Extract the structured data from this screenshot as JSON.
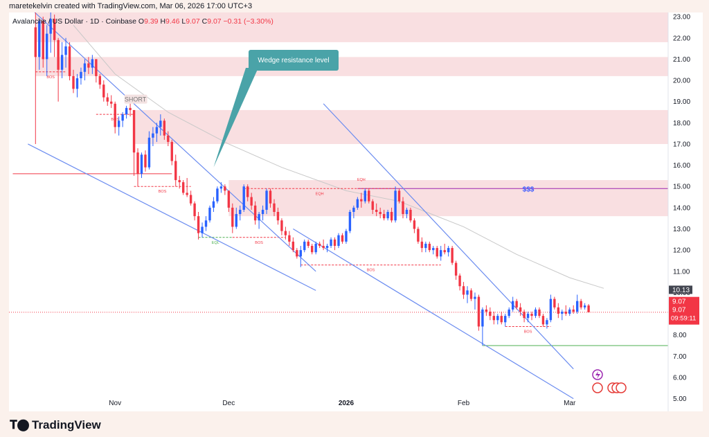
{
  "header": {
    "author_line": "maretekelvin created with TradingView.com, Mar 06, 2026 17:00 UTC+3"
  },
  "legend": {
    "symbol": "Avalanche / US Dollar · 1D · Coinbase",
    "open_label": "O",
    "open": "9.39",
    "high_label": "H",
    "high": "9.46",
    "low_label": "L",
    "low": "9.07",
    "close_label": "C",
    "close": "9.07",
    "change": "−0.31 (−3.30%)"
  },
  "footer": {
    "brand": "TradingView"
  },
  "colors": {
    "up": "#2962ff",
    "down": "#f23645",
    "zone": "#f7d7d9",
    "trendline": "#6b8cf0",
    "callout": "#4aa3a8",
    "ma": "#c8c8c8",
    "liquidity": "#9c27b0",
    "support": "#4caf50"
  },
  "chart_data": {
    "type": "candlestick",
    "interval": "1D",
    "y_axis": {
      "ticks": [
        "23.00",
        "22.00",
        "21.00",
        "20.00",
        "19.00",
        "18.00",
        "17.00",
        "16.00",
        "15.00",
        "14.00",
        "13.00",
        "12.00",
        "11.00",
        "10.00",
        "9.00",
        "8.00",
        "7.00",
        "6.00",
        "5.00"
      ],
      "range": [
        4.4,
        23.2
      ],
      "position": "right"
    },
    "x_axis": {
      "ticks": [
        "Nov",
        "Dec",
        "2026",
        "Feb",
        "Mar"
      ],
      "range": [
        "2025-10-04",
        "2026-03-27"
      ]
    },
    "last_price": "9.07",
    "countdown": "09:59:11",
    "ma_value": "10.13",
    "candles": [
      [
        "2025-10-11",
        22.5,
        23.4,
        17.0,
        21.1
      ],
      [
        "2025-10-12",
        21.1,
        22.9,
        20.5,
        22.8
      ],
      [
        "2025-10-13",
        22.8,
        23.0,
        20.6,
        21.0
      ],
      [
        "2025-10-14",
        21.0,
        22.6,
        20.2,
        22.2
      ],
      [
        "2025-10-15",
        22.2,
        23.4,
        21.3,
        22.9
      ],
      [
        "2025-10-16",
        22.9,
        23.1,
        21.1,
        21.9
      ],
      [
        "2025-10-17",
        21.9,
        22.0,
        19.0,
        20.5
      ],
      [
        "2025-10-18",
        20.5,
        21.8,
        20.1,
        21.2
      ],
      [
        "2025-10-19",
        21.2,
        22.0,
        20.6,
        21.6
      ],
      [
        "2025-10-20",
        21.6,
        21.8,
        20.0,
        20.2
      ],
      [
        "2025-10-21",
        20.2,
        20.5,
        19.4,
        19.6
      ],
      [
        "2025-10-22",
        19.6,
        20.3,
        19.2,
        20.1
      ],
      [
        "2025-10-23",
        20.1,
        20.6,
        19.8,
        20.4
      ],
      [
        "2025-10-24",
        20.4,
        21.0,
        20.0,
        20.8
      ],
      [
        "2025-10-25",
        20.8,
        21.1,
        20.3,
        20.6
      ],
      [
        "2025-10-26",
        20.6,
        21.2,
        20.3,
        21.0
      ],
      [
        "2025-10-27",
        21.0,
        21.0,
        19.9,
        20.2
      ],
      [
        "2025-10-28",
        20.2,
        20.3,
        19.6,
        19.8
      ],
      [
        "2025-10-29",
        19.8,
        20.0,
        19.0,
        19.2
      ],
      [
        "2025-10-30",
        19.2,
        19.4,
        18.8,
        19.0
      ],
      [
        "2025-10-31",
        19.0,
        19.3,
        18.7,
        18.9
      ],
      [
        "2025-11-01",
        18.9,
        19.0,
        17.5,
        17.8
      ],
      [
        "2025-11-02",
        17.8,
        18.3,
        17.4,
        18.1
      ],
      [
        "2025-11-03",
        18.1,
        18.5,
        17.8,
        18.4
      ],
      [
        "2025-11-04",
        18.4,
        18.8,
        18.2,
        18.7
      ],
      [
        "2025-11-05",
        18.7,
        18.9,
        18.3,
        18.6
      ],
      [
        "2025-11-06",
        18.6,
        18.6,
        15.5,
        16.6
      ],
      [
        "2025-11-07",
        16.6,
        16.8,
        15.0,
        15.6
      ],
      [
        "2025-11-08",
        15.6,
        16.6,
        15.4,
        16.5
      ],
      [
        "2025-11-09",
        16.5,
        16.7,
        15.7,
        15.9
      ],
      [
        "2025-11-10",
        15.9,
        17.6,
        15.8,
        17.3
      ],
      [
        "2025-11-11",
        17.3,
        17.8,
        16.9,
        17.5
      ],
      [
        "2025-11-12",
        17.5,
        18.0,
        17.1,
        17.8
      ],
      [
        "2025-11-13",
        17.8,
        18.4,
        17.4,
        18.1
      ],
      [
        "2025-11-14",
        18.1,
        18.2,
        17.2,
        17.4
      ],
      [
        "2025-11-15",
        17.4,
        17.6,
        16.9,
        17.1
      ],
      [
        "2025-11-16",
        17.1,
        17.2,
        16.0,
        16.2
      ],
      [
        "2025-11-17",
        16.2,
        16.5,
        15.0,
        15.3
      ],
      [
        "2025-11-18",
        15.3,
        15.5,
        14.9,
        15.2
      ],
      [
        "2025-11-19",
        15.2,
        15.3,
        14.6,
        14.7
      ],
      [
        "2025-11-20",
        14.7,
        15.4,
        14.5,
        14.6
      ],
      [
        "2025-11-21",
        14.6,
        14.8,
        14.1,
        14.2
      ],
      [
        "2025-11-22",
        14.2,
        14.3,
        13.4,
        13.6
      ],
      [
        "2025-11-23",
        13.6,
        13.8,
        12.5,
        12.8
      ],
      [
        "2025-11-24",
        12.8,
        13.3,
        12.6,
        13.1
      ],
      [
        "2025-11-25",
        13.1,
        13.6,
        12.9,
        13.4
      ],
      [
        "2025-11-26",
        13.4,
        14.1,
        13.3,
        14.0
      ],
      [
        "2025-11-27",
        14.0,
        14.5,
        13.8,
        14.3
      ],
      [
        "2025-11-28",
        14.3,
        15.0,
        14.2,
        14.9
      ],
      [
        "2025-11-29",
        14.9,
        15.2,
        14.7,
        15.0
      ],
      [
        "2025-11-30",
        15.0,
        15.1,
        14.6,
        14.8
      ],
      [
        "2025-12-01",
        14.8,
        14.8,
        13.8,
        14.0
      ],
      [
        "2025-12-02",
        14.0,
        14.2,
        12.8,
        13.1
      ],
      [
        "2025-12-03",
        13.1,
        14.0,
        13.0,
        13.7
      ],
      [
        "2025-12-04",
        13.7,
        14.1,
        13.4,
        13.9
      ],
      [
        "2025-12-05",
        13.9,
        15.1,
        13.8,
        15.0
      ],
      [
        "2025-12-06",
        15.0,
        15.1,
        14.3,
        14.5
      ],
      [
        "2025-12-07",
        14.5,
        14.7,
        13.9,
        14.1
      ],
      [
        "2025-12-08",
        14.1,
        14.3,
        13.2,
        13.4
      ],
      [
        "2025-12-09",
        13.4,
        13.8,
        13.0,
        13.7
      ],
      [
        "2025-12-10",
        13.7,
        14.1,
        13.4,
        13.9
      ],
      [
        "2025-12-11",
        13.9,
        14.9,
        13.7,
        14.8
      ],
      [
        "2025-12-12",
        14.8,
        14.9,
        14.0,
        14.2
      ],
      [
        "2025-12-13",
        14.2,
        14.4,
        13.6,
        13.8
      ],
      [
        "2025-12-14",
        13.8,
        14.0,
        13.2,
        13.4
      ],
      [
        "2025-12-15",
        13.4,
        13.5,
        12.7,
        12.9
      ],
      [
        "2025-12-16",
        12.9,
        13.1,
        12.5,
        12.7
      ],
      [
        "2025-12-17",
        12.7,
        12.9,
        12.2,
        12.4
      ],
      [
        "2025-12-18",
        12.4,
        12.6,
        11.9,
        12.0
      ],
      [
        "2025-12-19",
        12.0,
        12.1,
        11.6,
        11.7
      ],
      [
        "2025-12-20",
        11.7,
        12.2,
        11.2,
        12.0
      ],
      [
        "2025-12-21",
        12.0,
        12.5,
        11.9,
        12.4
      ],
      [
        "2025-12-22",
        12.4,
        12.5,
        12.1,
        12.2
      ],
      [
        "2025-12-23",
        12.2,
        12.3,
        11.8,
        11.9
      ],
      [
        "2025-12-24",
        11.9,
        12.4,
        11.8,
        12.3
      ],
      [
        "2025-12-25",
        12.3,
        12.4,
        12.1,
        12.2
      ],
      [
        "2025-12-26",
        12.2,
        12.5,
        12.0,
        12.1
      ],
      [
        "2025-12-27",
        12.1,
        12.3,
        11.9,
        12.2
      ],
      [
        "2025-12-28",
        12.2,
        12.6,
        12.1,
        12.5
      ],
      [
        "2025-12-29",
        12.5,
        12.6,
        12.0,
        12.2
      ],
      [
        "2025-12-30",
        12.2,
        12.8,
        12.1,
        12.7
      ],
      [
        "2025-12-31",
        12.7,
        12.8,
        12.3,
        12.4
      ],
      [
        "2026-01-01",
        12.4,
        13.0,
        12.3,
        12.9
      ],
      [
        "2026-01-02",
        12.9,
        13.9,
        12.8,
        13.8
      ],
      [
        "2026-01-03",
        13.8,
        14.1,
        13.5,
        14.0
      ],
      [
        "2026-01-04",
        14.0,
        14.5,
        13.9,
        14.4
      ],
      [
        "2026-01-05",
        14.4,
        14.7,
        14.0,
        14.3
      ],
      [
        "2026-01-06",
        14.3,
        14.9,
        14.2,
        14.8
      ],
      [
        "2026-01-07",
        14.8,
        14.9,
        14.2,
        14.3
      ],
      [
        "2026-01-08",
        14.3,
        14.4,
        13.7,
        13.9
      ],
      [
        "2026-01-09",
        13.9,
        14.2,
        13.6,
        13.8
      ],
      [
        "2026-01-10",
        13.8,
        14.0,
        13.5,
        13.7
      ],
      [
        "2026-01-11",
        13.7,
        13.9,
        13.4,
        13.5
      ],
      [
        "2026-01-12",
        13.5,
        13.9,
        13.4,
        13.8
      ],
      [
        "2026-01-13",
        13.8,
        14.0,
        13.3,
        13.4
      ],
      [
        "2026-01-14",
        13.4,
        15.0,
        13.3,
        14.8
      ],
      [
        "2026-01-15",
        14.8,
        14.9,
        14.2,
        14.3
      ],
      [
        "2026-01-16",
        14.3,
        14.5,
        13.5,
        13.7
      ],
      [
        "2026-01-17",
        13.7,
        14.0,
        13.5,
        13.9
      ],
      [
        "2026-01-18",
        13.9,
        14.0,
        13.3,
        13.4
      ],
      [
        "2026-01-19",
        13.4,
        13.5,
        12.8,
        13.0
      ],
      [
        "2026-01-20",
        13.0,
        13.1,
        12.3,
        12.4
      ],
      [
        "2026-01-21",
        12.4,
        12.6,
        11.9,
        12.1
      ],
      [
        "2026-01-22",
        12.1,
        12.4,
        11.9,
        12.3
      ],
      [
        "2026-01-23",
        12.3,
        12.4,
        11.9,
        12.0
      ],
      [
        "2026-01-24",
        12.0,
        12.2,
        11.8,
        12.1
      ],
      [
        "2026-01-25",
        12.1,
        12.2,
        11.6,
        11.7
      ],
      [
        "2026-01-26",
        11.7,
        12.2,
        11.5,
        12.0
      ],
      [
        "2026-01-27",
        12.0,
        12.3,
        11.8,
        11.9
      ],
      [
        "2026-01-28",
        11.9,
        12.2,
        11.7,
        12.1
      ],
      [
        "2026-01-29",
        12.1,
        12.2,
        11.3,
        11.4
      ],
      [
        "2026-01-30",
        11.4,
        11.5,
        10.6,
        10.8
      ],
      [
        "2026-01-31",
        10.8,
        10.9,
        10.1,
        10.3
      ],
      [
        "2026-02-01",
        10.3,
        10.5,
        9.7,
        9.9
      ],
      [
        "2026-02-02",
        9.9,
        10.3,
        9.5,
        10.1
      ],
      [
        "2026-02-03",
        10.1,
        10.2,
        9.6,
        9.7
      ],
      [
        "2026-02-04",
        9.7,
        10.0,
        9.2,
        9.8
      ],
      [
        "2026-02-05",
        9.8,
        9.9,
        8.2,
        8.4
      ],
      [
        "2026-02-06",
        8.4,
        9.3,
        7.5,
        9.2
      ],
      [
        "2026-02-07",
        9.2,
        9.4,
        8.9,
        9.1
      ],
      [
        "2026-02-08",
        9.1,
        9.3,
        8.7,
        8.9
      ],
      [
        "2026-02-09",
        8.9,
        9.1,
        8.5,
        8.7
      ],
      [
        "2026-02-10",
        8.7,
        9.0,
        8.5,
        8.9
      ],
      [
        "2026-02-11",
        8.9,
        9.1,
        8.5,
        8.6
      ],
      [
        "2026-02-12",
        8.6,
        9.0,
        8.4,
        8.9
      ],
      [
        "2026-02-13",
        8.9,
        9.3,
        8.8,
        9.2
      ],
      [
        "2026-02-14",
        9.2,
        9.8,
        9.1,
        9.6
      ],
      [
        "2026-02-15",
        9.6,
        9.7,
        9.2,
        9.3
      ],
      [
        "2026-02-16",
        9.3,
        9.5,
        8.9,
        9.1
      ],
      [
        "2026-02-17",
        9.1,
        9.2,
        8.6,
        8.8
      ],
      [
        "2026-02-18",
        8.8,
        9.1,
        8.6,
        9.0
      ],
      [
        "2026-02-19",
        9.0,
        9.1,
        8.7,
        8.9
      ],
      [
        "2026-02-20",
        8.9,
        9.3,
        8.8,
        9.2
      ],
      [
        "2026-02-21",
        9.2,
        9.3,
        8.8,
        8.9
      ],
      [
        "2026-02-22",
        8.9,
        9.0,
        8.4,
        8.5
      ],
      [
        "2026-02-23",
        8.5,
        8.8,
        8.3,
        8.7
      ],
      [
        "2026-02-24",
        8.7,
        9.9,
        8.6,
        9.7
      ],
      [
        "2026-02-25",
        9.7,
        9.8,
        9.2,
        9.3
      ],
      [
        "2026-02-26",
        9.3,
        9.5,
        8.8,
        9.0
      ],
      [
        "2026-02-27",
        9.0,
        9.2,
        8.7,
        9.1
      ],
      [
        "2026-02-28",
        9.1,
        9.4,
        8.9,
        9.0
      ],
      [
        "2026-03-01",
        9.0,
        9.3,
        8.9,
        9.2
      ],
      [
        "2026-03-02",
        9.2,
        9.4,
        9.0,
        9.1
      ],
      [
        "2026-03-03",
        9.1,
        9.9,
        9.0,
        9.6
      ],
      [
        "2026-03-04",
        9.6,
        9.7,
        9.2,
        9.3
      ],
      [
        "2026-03-05",
        9.3,
        9.5,
        9.2,
        9.39
      ],
      [
        "2026-03-06",
        9.39,
        9.46,
        9.07,
        9.07
      ]
    ],
    "moving_average": [
      [
        "2025-10-21",
        22.6
      ],
      [
        "2025-11-01",
        20.3
      ],
      [
        "2025-11-15",
        18.5
      ],
      [
        "2025-12-01",
        17.0
      ],
      [
        "2025-12-15",
        15.9
      ],
      [
        "2026-01-01",
        14.8
      ],
      [
        "2026-01-15",
        14.3
      ],
      [
        "2026-02-01",
        13.1
      ],
      [
        "2026-02-15",
        11.8
      ],
      [
        "2026-03-01",
        10.7
      ],
      [
        "2026-03-10",
        10.2
      ]
    ],
    "zones": [
      {
        "from": 21.8,
        "to": 23.2,
        "start": "2025-10-11"
      },
      {
        "from": 20.2,
        "to": 21.1,
        "start": "2025-10-11"
      },
      {
        "from": 17.0,
        "to": 18.6,
        "start": "2025-11-06"
      },
      {
        "from": 13.6,
        "to": 15.3,
        "start": "2025-12-01"
      }
    ],
    "trendlines": [
      {
        "from": [
          "2025-10-09",
          17.0
        ],
        "to": [
          "2025-12-24",
          10.1
        ]
      },
      {
        "from": [
          "2025-10-09",
          23.5
        ],
        "to": [
          "2025-12-24",
          11.0
        ]
      },
      {
        "from": [
          "2025-12-26",
          18.9
        ],
        "to": [
          "2026-03-02",
          6.4
        ]
      },
      {
        "from": [
          "2025-12-18",
          13.0
        ],
        "to": [
          "2026-03-02",
          5.0
        ]
      }
    ],
    "levels": [
      {
        "price": 15.6,
        "from": "2025-10-05",
        "to": "2025-11-16",
        "style": "solid",
        "color": "#f23645"
      },
      {
        "price": 14.9,
        "from": "2026-01-04",
        "to": "2026-03-27",
        "style": "solid",
        "color": "#9c27b0"
      },
      {
        "price": 7.5,
        "from": "2026-02-06",
        "to": "2026-03-27",
        "style": "solid",
        "color": "#4caf50"
      },
      {
        "price": 9.07,
        "from": "2025-10-04",
        "to": "2026-03-27",
        "style": "dotted",
        "color": "#f23645"
      }
    ],
    "markers": [
      {
        "price": 20.4,
        "from": "2025-10-11",
        "to": "2025-10-19",
        "label": "BOS"
      },
      {
        "price": 18.4,
        "from": "2025-10-27",
        "to": "2025-11-06",
        "label": "BOS"
      },
      {
        "price": 15.0,
        "from": "2025-11-06",
        "to": "2025-11-21",
        "label": "BOS"
      },
      {
        "price": 12.6,
        "from": "2025-11-23",
        "to": "2025-12-02",
        "label": "EQL",
        "color": "#4caf50"
      },
      {
        "price": 12.6,
        "from": "2025-12-02",
        "to": "2025-12-16",
        "label": "BOS"
      },
      {
        "price": 11.3,
        "from": "2025-12-20",
        "to": "2026-01-26",
        "label": "BOS"
      },
      {
        "price": 8.4,
        "from": "2026-02-12",
        "to": "2026-02-24",
        "label": "BOS"
      },
      {
        "price": 14.9,
        "from": "2025-12-05",
        "to": "2026-01-14",
        "label": "EQH"
      }
    ],
    "annotations": {
      "short_label": "SHORT",
      "short_at": [
        "2025-11-04",
        19.0
      ],
      "callout_label": "Wedge resistance level",
      "callout_anchor": [
        "2025-11-27",
        15.9
      ],
      "liquidity_label": "$$$",
      "eqh_label": "EQH",
      "eqh_at": [
        "2026-01-05",
        15.2
      ]
    }
  }
}
